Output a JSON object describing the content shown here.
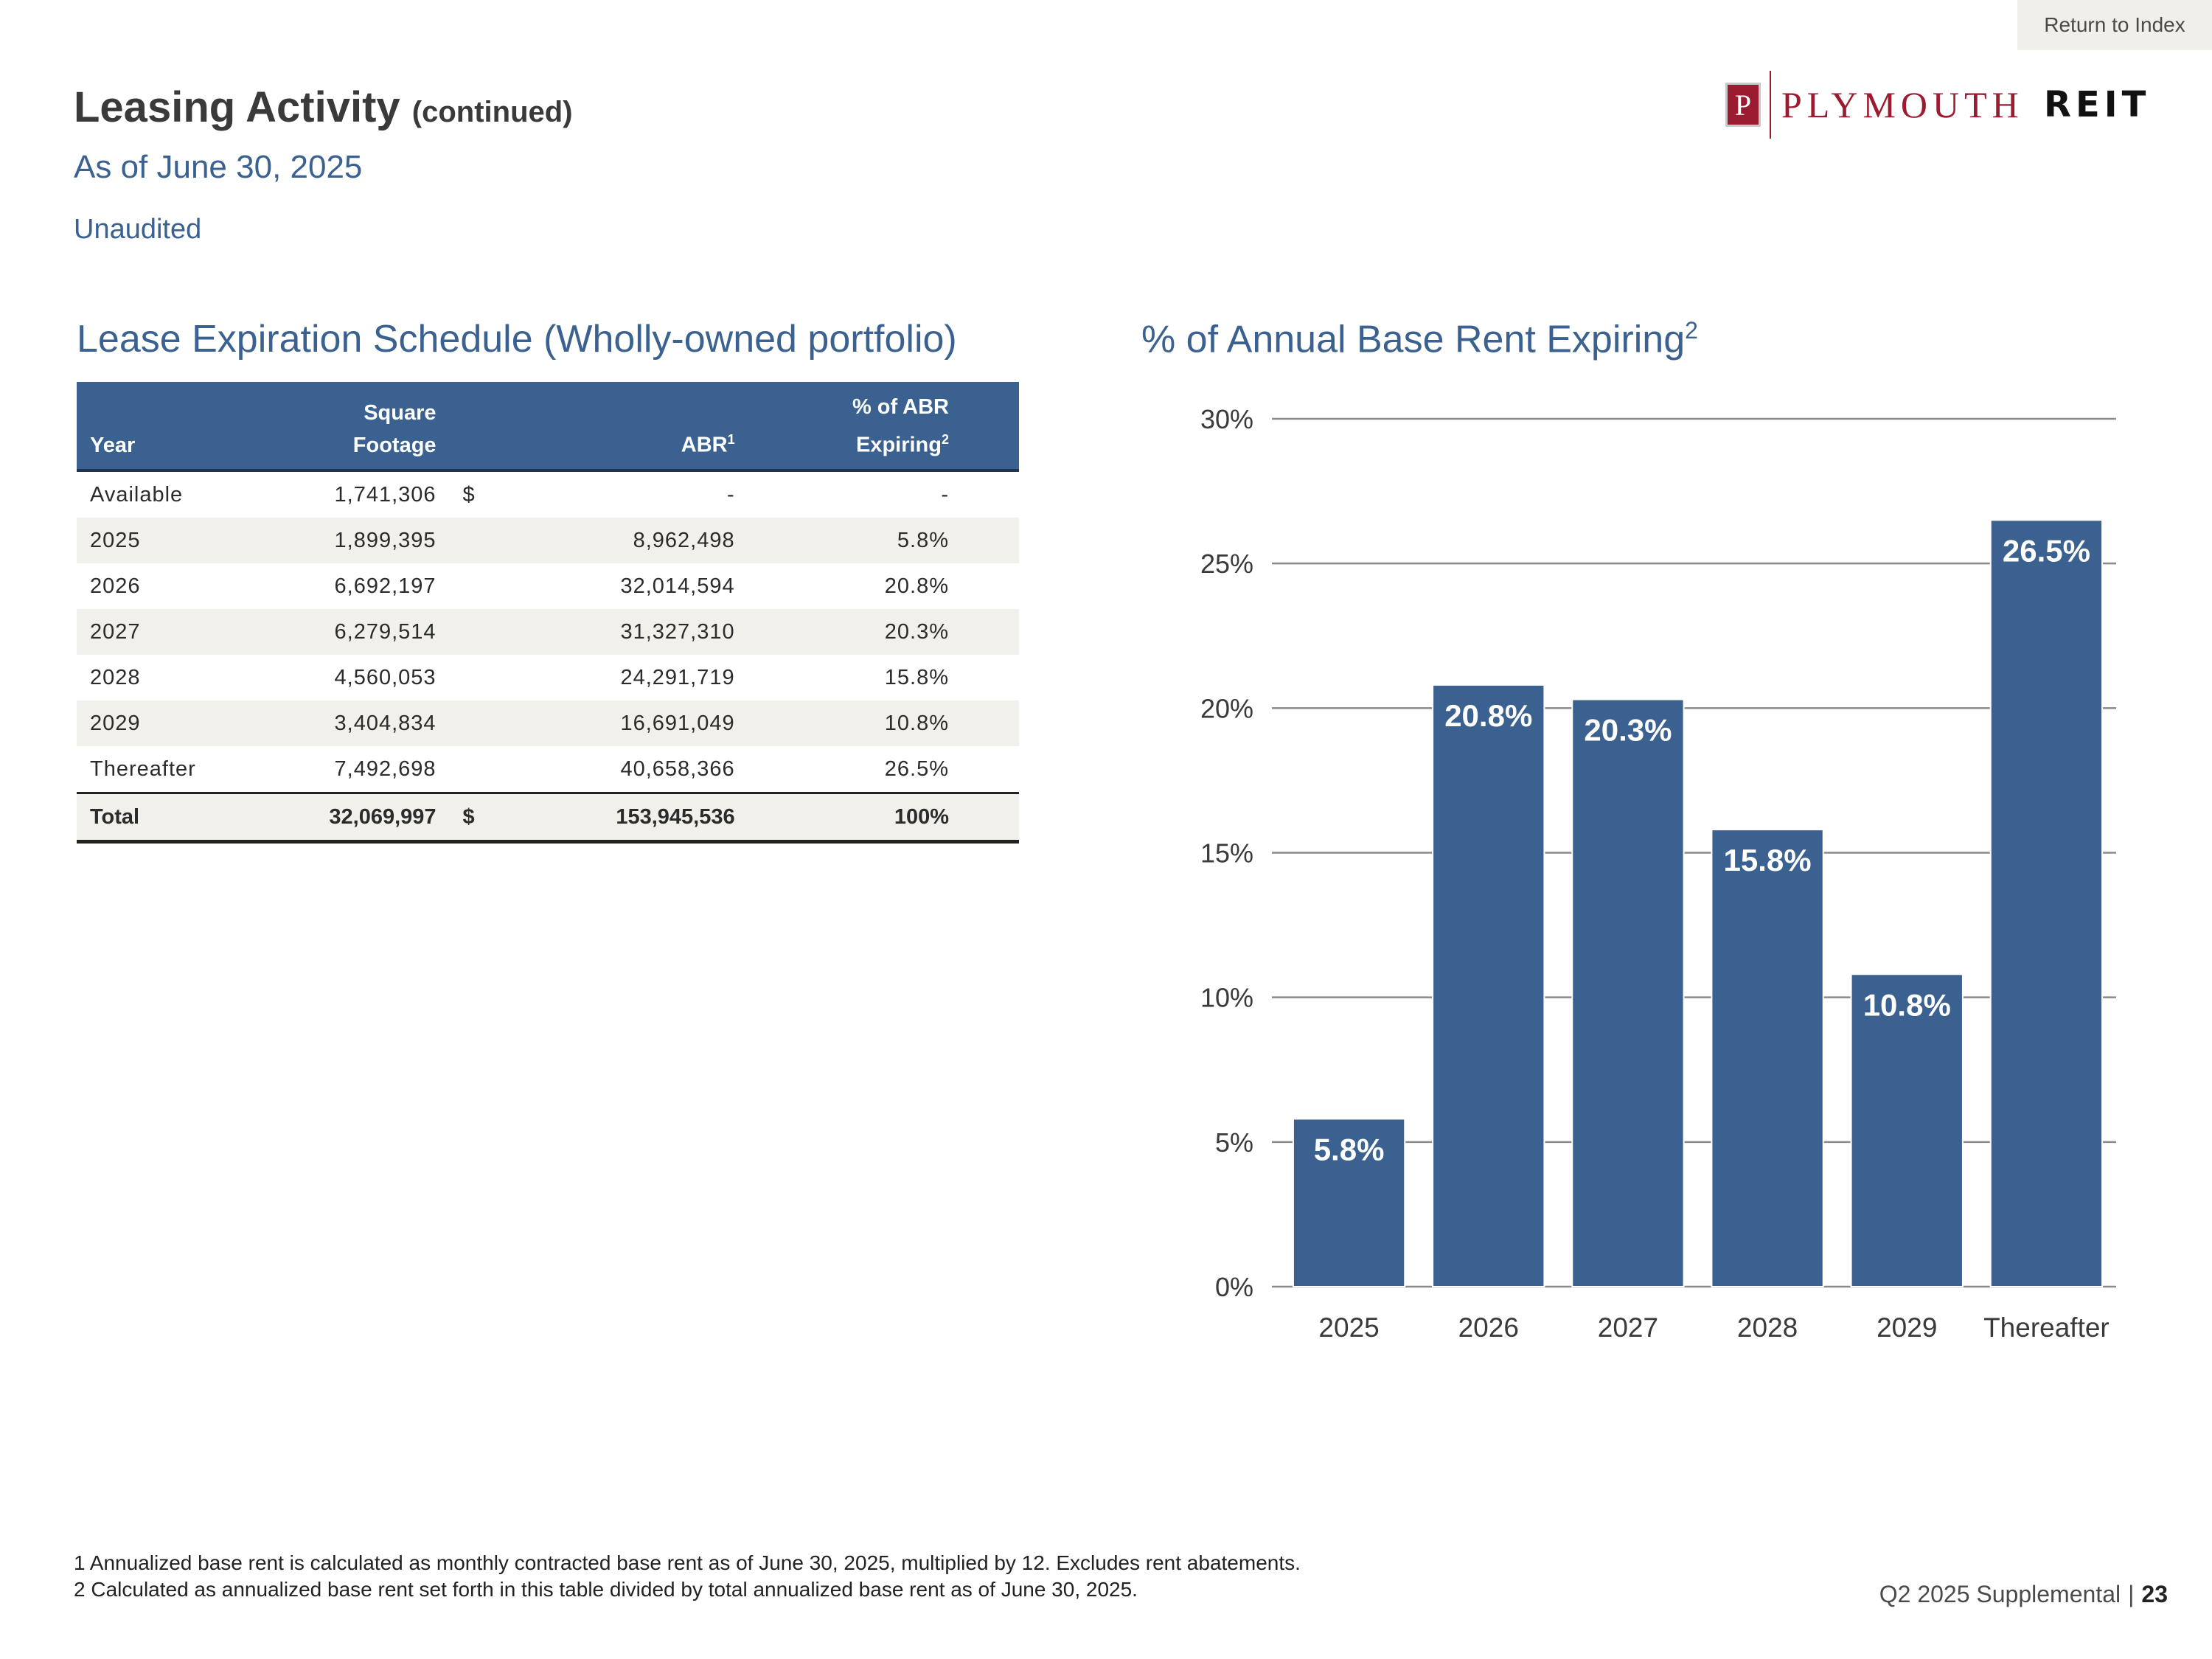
{
  "nav": {
    "return_label": "Return to Index"
  },
  "logo": {
    "letter": "P",
    "word1": "PLYMOUTH",
    "word2": "REIT"
  },
  "header": {
    "title": "Leasing Activity",
    "title_suffix": "(continued)",
    "subtitle": "As of June 30, 2025",
    "note": "Unaudited"
  },
  "table": {
    "title": "Lease Expiration Schedule (Wholly-owned portfolio)",
    "headers": {
      "year": "Year",
      "sq_line1": "Square",
      "sq_line2": "Footage",
      "abr": "ABR",
      "abr_sup": "1",
      "pct_line1": "% of ABR",
      "pct_line2": "Expiring",
      "pct_sup": "2"
    },
    "rows": [
      {
        "year": "Available",
        "sqft": "1,741,306",
        "dollar": "$",
        "abr": "-",
        "pct": "-"
      },
      {
        "year": "2025",
        "sqft": "1,899,395",
        "dollar": "",
        "abr": "8,962,498",
        "pct": "5.8%"
      },
      {
        "year": "2026",
        "sqft": "6,692,197",
        "dollar": "",
        "abr": "32,014,594",
        "pct": "20.8%"
      },
      {
        "year": "2027",
        "sqft": "6,279,514",
        "dollar": "",
        "abr": "31,327,310",
        "pct": "20.3%"
      },
      {
        "year": "2028",
        "sqft": "4,560,053",
        "dollar": "",
        "abr": "24,291,719",
        "pct": "15.8%"
      },
      {
        "year": "2029",
        "sqft": "3,404,834",
        "dollar": "",
        "abr": "16,691,049",
        "pct": "10.8%"
      },
      {
        "year": "Thereafter",
        "sqft": "7,492,698",
        "dollar": "",
        "abr": "40,658,366",
        "pct": "26.5%"
      }
    ],
    "total": {
      "year": "Total",
      "sqft": "32,069,997",
      "dollar": "$",
      "abr": "153,945,536",
      "pct": "100%"
    }
  },
  "chart_title": {
    "text": "% of Annual Base Rent Expiring",
    "sup": "2"
  },
  "chart_data": {
    "type": "bar",
    "title": "% of Annual Base Rent Expiring",
    "categories": [
      "2025",
      "2026",
      "2027",
      "2028",
      "2029",
      "Thereafter"
    ],
    "values": [
      5.8,
      20.8,
      20.3,
      15.8,
      10.8,
      26.5
    ],
    "data_labels": [
      "5.8%",
      "20.8%",
      "20.3%",
      "15.8%",
      "10.8%",
      "26.5%"
    ],
    "ylim": [
      0,
      30
    ],
    "yticks": [
      0,
      5,
      10,
      15,
      20,
      25,
      30
    ],
    "ytick_labels": [
      "0%",
      "5%",
      "10%",
      "15%",
      "20%",
      "25%",
      "30%"
    ],
    "xlabel": "",
    "ylabel": "",
    "grid": true,
    "color": "#3a6190"
  },
  "footnotes": [
    "1  Annualized base rent is calculated as monthly contracted base rent as of June 30, 2025, multiplied by 12. Excludes rent abatements.",
    "2  Calculated as annualized base rent set forth in this table divided by total annualized base rent as of June 30, 2025."
  ],
  "page_info": {
    "label": "Q2 2025 Supplemental",
    "separator": "|",
    "page": "23"
  }
}
